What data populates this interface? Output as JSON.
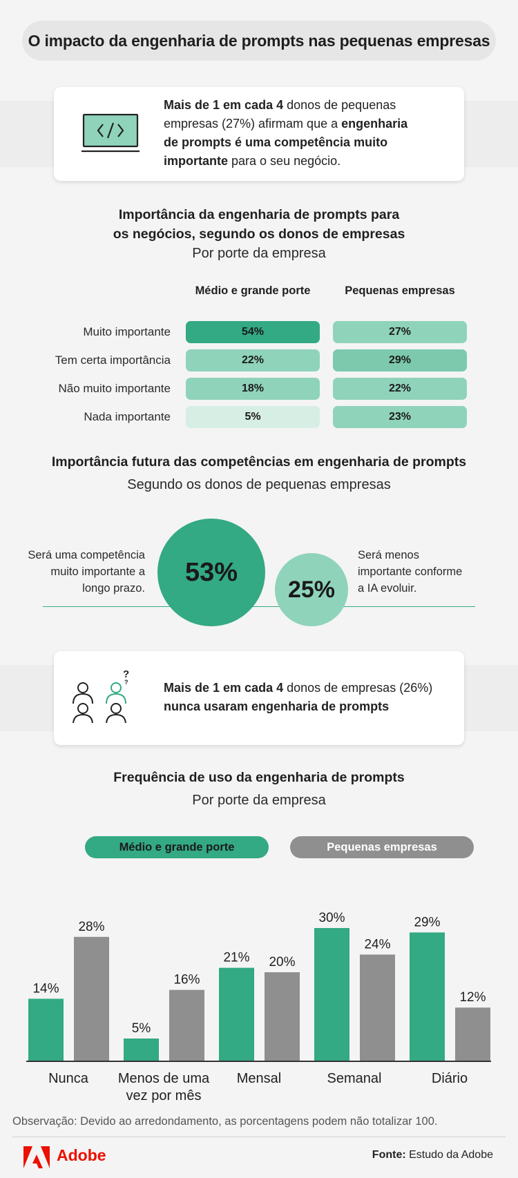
{
  "title": "O impacto da engenharia de prompts nas pequenas empresas",
  "card1": {
    "lines": [
      [
        {
          "t": "Mais de 1 em cada 4",
          "b": true
        },
        {
          "t": " donos de pequenas",
          "b": false
        }
      ],
      [
        {
          "t": "empresas (27%) afirmam que a ",
          "b": false
        },
        {
          "t": "engenharia",
          "b": true
        }
      ],
      [
        {
          "t": "de prompts é uma competência muito",
          "b": true
        }
      ],
      [
        {
          "t": "importante",
          "b": true
        },
        {
          "t": " para o seu negócio.",
          "b": false
        }
      ]
    ]
  },
  "section1": {
    "title_line1": "Importância da engenharia de prompts para",
    "title_line2": "os negócios, segundo os donos de empresas",
    "subtitle": "Por porte da empresa"
  },
  "section2": {
    "title": "Importância futura das competências em engenharia de prompts",
    "subtitle": "Segundo os donos de pequenas empresas",
    "left_text": [
      "Será uma competência",
      "muito importante a",
      "longo prazo."
    ],
    "right_text": [
      "Será menos",
      "importante conforme",
      "a IA evoluir."
    ]
  },
  "card2": {
    "line1_bold": "Mais de 1 em cada 4",
    "line1_rest": " donos de empresas (26%)",
    "line2_bold": "nunca usaram engenharia de prompts"
  },
  "section3": {
    "title": "Frequência de uso da engenharia de prompts",
    "subtitle": "Por porte da empresa"
  },
  "note": "Observação: Devido ao arredondamento, as porcentagens podem não totalizar 100.",
  "footer": {
    "brand": "Adobe",
    "source_label": "Fonte:",
    "source_text": " Estudo da Adobe"
  },
  "colors": {
    "green": "#33a984",
    "gray": "#8f8f8f",
    "green_light": "#8fd3bb",
    "green_pale": "#d6eee4"
  },
  "chart_data": [
    {
      "type": "table",
      "title": "Importância da engenharia de prompts para os negócios, segundo os donos de empresas",
      "subtitle": "Por porte da empresa",
      "columns": [
        "Médio e grande porte",
        "Pequenas empresas"
      ],
      "rows": [
        {
          "label": "Muito importante",
          "values": [
            54,
            27
          ],
          "display": [
            "54%",
            "27%"
          ]
        },
        {
          "label": "Tem certa importância",
          "values": [
            22,
            29
          ],
          "display": [
            "22%",
            "29%"
          ]
        },
        {
          "label": "Não muito importante",
          "values": [
            18,
            22
          ],
          "display": [
            "18%",
            "22%"
          ]
        },
        {
          "label": "Nada importante",
          "values": [
            5,
            23
          ],
          "display": [
            "5%",
            "23%"
          ]
        }
      ]
    },
    {
      "type": "bubble",
      "title": "Importância futura das competências em engenharia de prompts",
      "subtitle": "Segundo os donos de pequenas empresas",
      "items": [
        {
          "label": "Será uma competência muito importante a longo prazo.",
          "value": 53,
          "display": "53%"
        },
        {
          "label": "Será menos importante conforme a IA evoluir.",
          "value": 25,
          "display": "25%"
        }
      ]
    },
    {
      "type": "bar",
      "title": "Frequência de uso da engenharia de prompts",
      "subtitle": "Por porte da empresa",
      "categories": [
        "Nunca",
        "Menos de uma vez por mês",
        "Mensal",
        "Semanal",
        "Diário"
      ],
      "category_lines": [
        [
          "Nunca"
        ],
        [
          "Menos de uma",
          "vez por mês"
        ],
        [
          "Mensal"
        ],
        [
          "Semanal"
        ],
        [
          "Diário"
        ]
      ],
      "series": [
        {
          "name": "Médio e grande porte",
          "values": [
            14,
            5,
            21,
            30,
            29
          ],
          "color": "#33a984"
        },
        {
          "name": "Pequenas empresas",
          "values": [
            28,
            16,
            20,
            24,
            12
          ],
          "color": "#8f8f8f"
        }
      ],
      "value_format": "percent",
      "grid": false,
      "legend": "top"
    }
  ]
}
